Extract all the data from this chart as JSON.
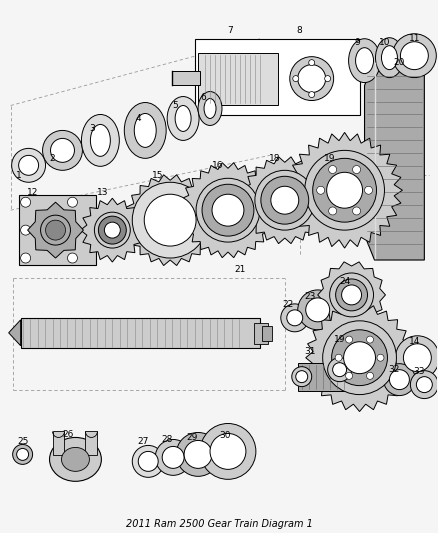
{
  "title": "2011 Ram 2500 Gear Train Diagram 1",
  "bg": "#f5f5f5",
  "lc": "#111111",
  "gc": "#d0d0d0",
  "dc": "#888888",
  "fig_w": 4.38,
  "fig_h": 5.33,
  "dpi": 100
}
